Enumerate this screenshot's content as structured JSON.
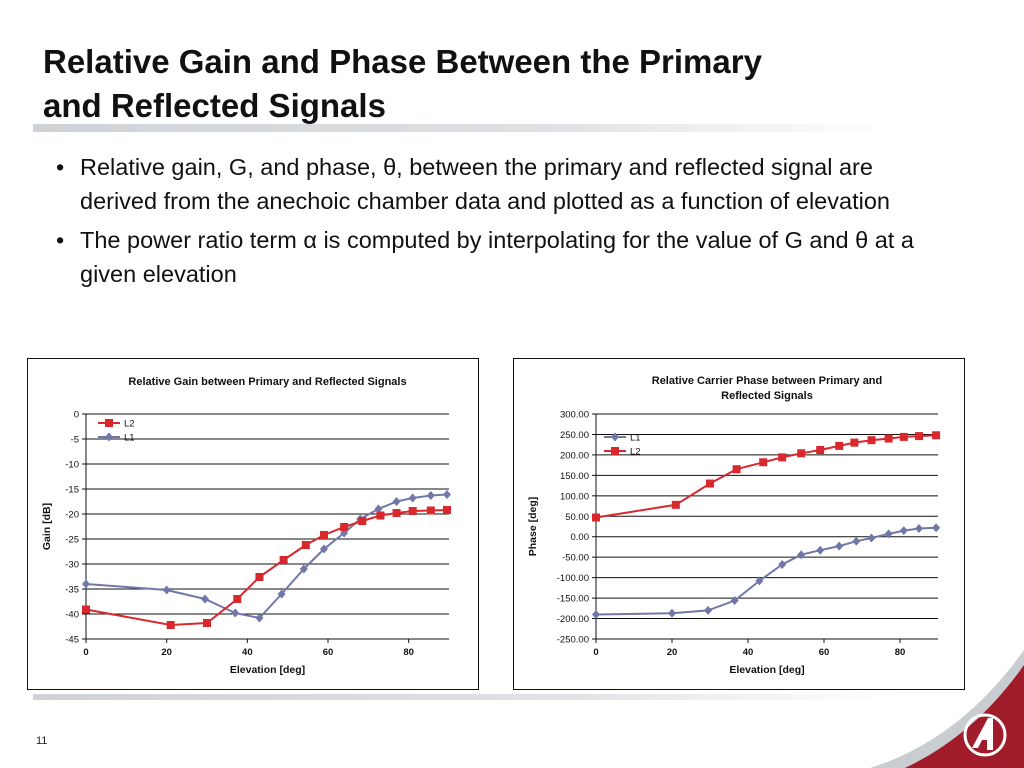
{
  "slide": {
    "title_line1": "Relative Gain and Phase Between the Primary",
    "title_line2": "and Reflected Signals",
    "bullet1": "Relative gain, G, and phase, θ, between the primary and reflected signal are derived from the anechoic chamber data and plotted as a function of elevation",
    "bullet2": "The power ratio term α is computed by interpolating for the value of G and θ at a given elevation",
    "page_number": "11"
  },
  "colors": {
    "L1": "#7178a8",
    "L2": "#d8282e",
    "gridline": "#111111",
    "logo_red": "#a01c2a"
  },
  "icons": {
    "logo": "corner-logo-icon"
  },
  "chart_data": [
    {
      "type": "line",
      "title": "Relative Gain between Primary and Reflected Signals",
      "xlabel": "Elevation [deg]",
      "ylabel": "Gain [dB]",
      "xlim": [
        0,
        90
      ],
      "ylim": [
        -45,
        0
      ],
      "xticks": [
        0,
        20,
        40,
        60,
        80
      ],
      "xtick_labels": [
        "0",
        "20",
        "40",
        "60",
        "80"
      ],
      "yticks": [
        0,
        -5,
        -10,
        -15,
        -20,
        -25,
        -30,
        -35,
        -40,
        -45
      ],
      "ytick_labels": [
        "0",
        "-5",
        "-10",
        "-15",
        "-20",
        "-25",
        "-30",
        "-35",
        "-40",
        "-45"
      ],
      "grid": "horizontal",
      "legend_position": "top-left",
      "legend_order": [
        "L2",
        "L1"
      ],
      "series": [
        {
          "name": "L1",
          "marker": "diamond",
          "x": [
            0,
            20,
            29.5,
            37,
            43,
            48.5,
            54,
            59,
            64,
            68,
            72.5,
            77,
            81,
            85.5,
            89.5
          ],
          "y": [
            -34,
            -35.2,
            -37,
            -39.8,
            -40.8,
            -36,
            -31,
            -27,
            -23.8,
            -21,
            -19,
            -17.5,
            -16.8,
            -16.3,
            -16.1
          ]
        },
        {
          "name": "L2",
          "marker": "square",
          "x": [
            0,
            21,
            30,
            37.5,
            43,
            49,
            54.5,
            59,
            64,
            68.5,
            73,
            77,
            81,
            85.5,
            89.5
          ],
          "y": [
            -39.1,
            -42.2,
            -41.8,
            -37,
            -32.6,
            -29.2,
            -26.2,
            -24.2,
            -22.6,
            -21.4,
            -20.3,
            -19.8,
            -19.4,
            -19.3,
            -19.2
          ]
        }
      ]
    },
    {
      "type": "line",
      "title": "Relative Carrier Phase between Primary and Reflected Signals",
      "title_line1": "Relative Carrier Phase between Primary and",
      "title_line2": "Reflected Signals",
      "xlabel": "Elevation [deg]",
      "ylabel": "Phase [deg]",
      "xlim": [
        0,
        90
      ],
      "ylim": [
        -250,
        300
      ],
      "xticks": [
        0,
        20,
        40,
        60,
        80
      ],
      "xtick_labels": [
        "0",
        "20",
        "40",
        "60",
        "80"
      ],
      "yticks": [
        300,
        250,
        200,
        150,
        100,
        50,
        0,
        -50,
        -100,
        -150,
        -200,
        -250
      ],
      "ytick_labels": [
        "300.00",
        "250.00",
        "200.00",
        "150.00",
        "100.00",
        "50.00",
        "0.00",
        "-50.00",
        "-100.00",
        "-150.00",
        "-200.00",
        "-250.00"
      ],
      "grid": "horizontal",
      "legend_position": "top-left",
      "legend_order": [
        "L1",
        "L2"
      ],
      "series": [
        {
          "name": "L1",
          "marker": "diamond",
          "x": [
            0,
            20,
            29.5,
            36.5,
            43,
            49,
            54,
            59,
            64,
            68.5,
            72.5,
            77,
            81,
            85,
            89.5
          ],
          "y": [
            -190,
            -187,
            -180,
            -156,
            -108,
            -68,
            -44,
            -33,
            -23,
            -11,
            -3,
            7,
            15,
            20,
            22
          ]
        },
        {
          "name": "L2",
          "marker": "square",
          "x": [
            0,
            21,
            30,
            37,
            44,
            49,
            54,
            59,
            64,
            68,
            72.5,
            77,
            81,
            85,
            89.5
          ],
          "y": [
            47,
            78,
            130,
            165,
            182,
            194,
            204,
            212,
            222,
            230,
            236,
            240,
            244,
            246,
            248
          ]
        }
      ]
    }
  ]
}
